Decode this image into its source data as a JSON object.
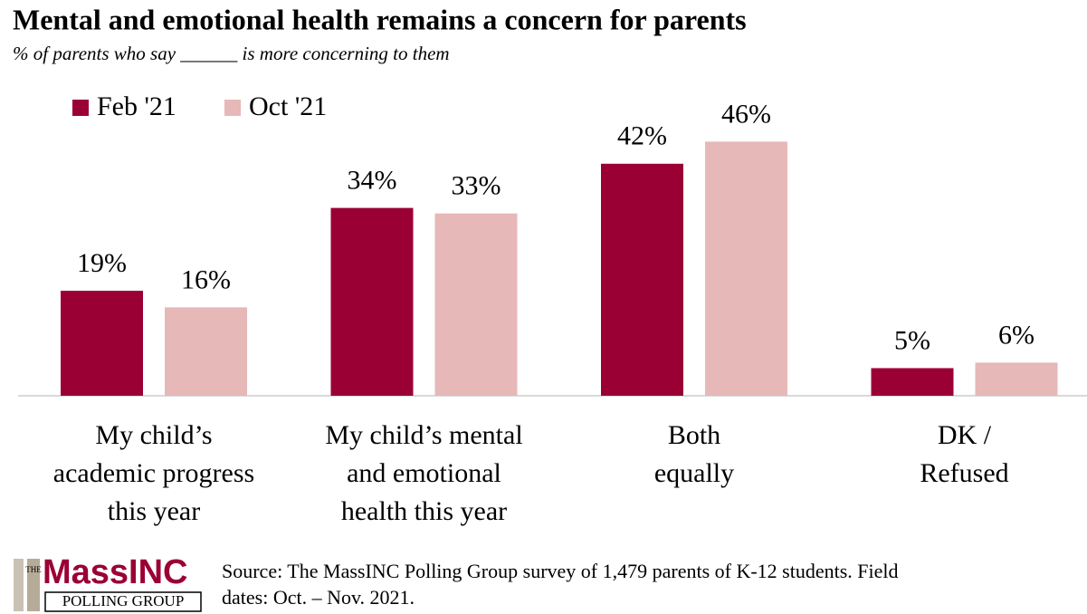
{
  "chart_data": {
    "type": "bar",
    "title": "Mental and emotional health remains a concern for parents",
    "subtitle": "% of parents who say ______ is more concerning to them",
    "categories": [
      "My child’s\nacademic progress\nthis year",
      "My child’s mental\nand emotional\nhealth this year",
      "Both\nequally",
      "DK /\nRefused"
    ],
    "series": [
      {
        "name": "Feb '21",
        "color": "#9b0035",
        "values": [
          19,
          34,
          42,
          5
        ],
        "value_labels": [
          "19%",
          "34%",
          "42%",
          "5%"
        ]
      },
      {
        "name": "Oct '21",
        "color": "#e6b8b7",
        "values": [
          16,
          33,
          46,
          6
        ],
        "value_labels": [
          "16%",
          "33%",
          "46%",
          "6%"
        ]
      }
    ],
    "legend": "top-left",
    "source": "Source: The MassINC Polling Group survey of 1,479 parents of K-12 students. Field\ndates: Oct. – Nov. 2021.",
    "logo": {
      "the": "THE",
      "name": "MassINC",
      "group": "POLLING GROUP"
    }
  }
}
